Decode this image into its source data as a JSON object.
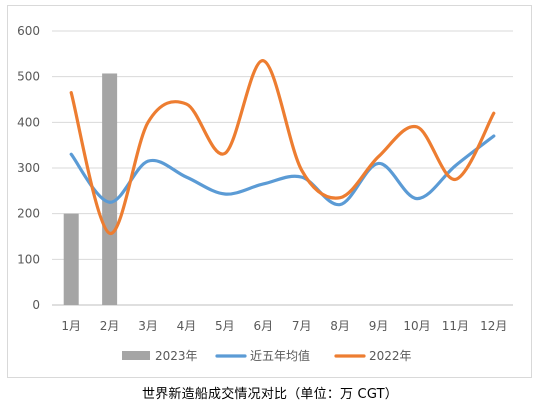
{
  "chart_data": {
    "type": "bar",
    "categories": [
      "1月",
      "2月",
      "3月",
      "4月",
      "5月",
      "6月",
      "7月",
      "8月",
      "9月",
      "10月",
      "11月",
      "12月"
    ],
    "ylim": [
      0,
      600
    ],
    "yticks": [
      0,
      100,
      200,
      300,
      400,
      500,
      600
    ],
    "grid": true,
    "legend_position": "bottom",
    "series": [
      {
        "name": "2023年",
        "type": "bar",
        "color": "#a5a5a5",
        "values": [
          200,
          507,
          null,
          null,
          null,
          null,
          null,
          null,
          null,
          null,
          null,
          null
        ]
      },
      {
        "name": "近五年均值",
        "type": "line",
        "color": "#5b9bd5",
        "values": [
          330,
          225,
          315,
          280,
          243,
          265,
          280,
          220,
          310,
          233,
          305,
          370
        ]
      },
      {
        "name": "2022年",
        "type": "line",
        "color": "#ed7d31",
        "values": [
          465,
          157,
          400,
          440,
          332,
          535,
          295,
          235,
          325,
          390,
          275,
          420
        ]
      }
    ]
  },
  "caption": "世界新造船成交情况对比（单位：万 CGT）"
}
